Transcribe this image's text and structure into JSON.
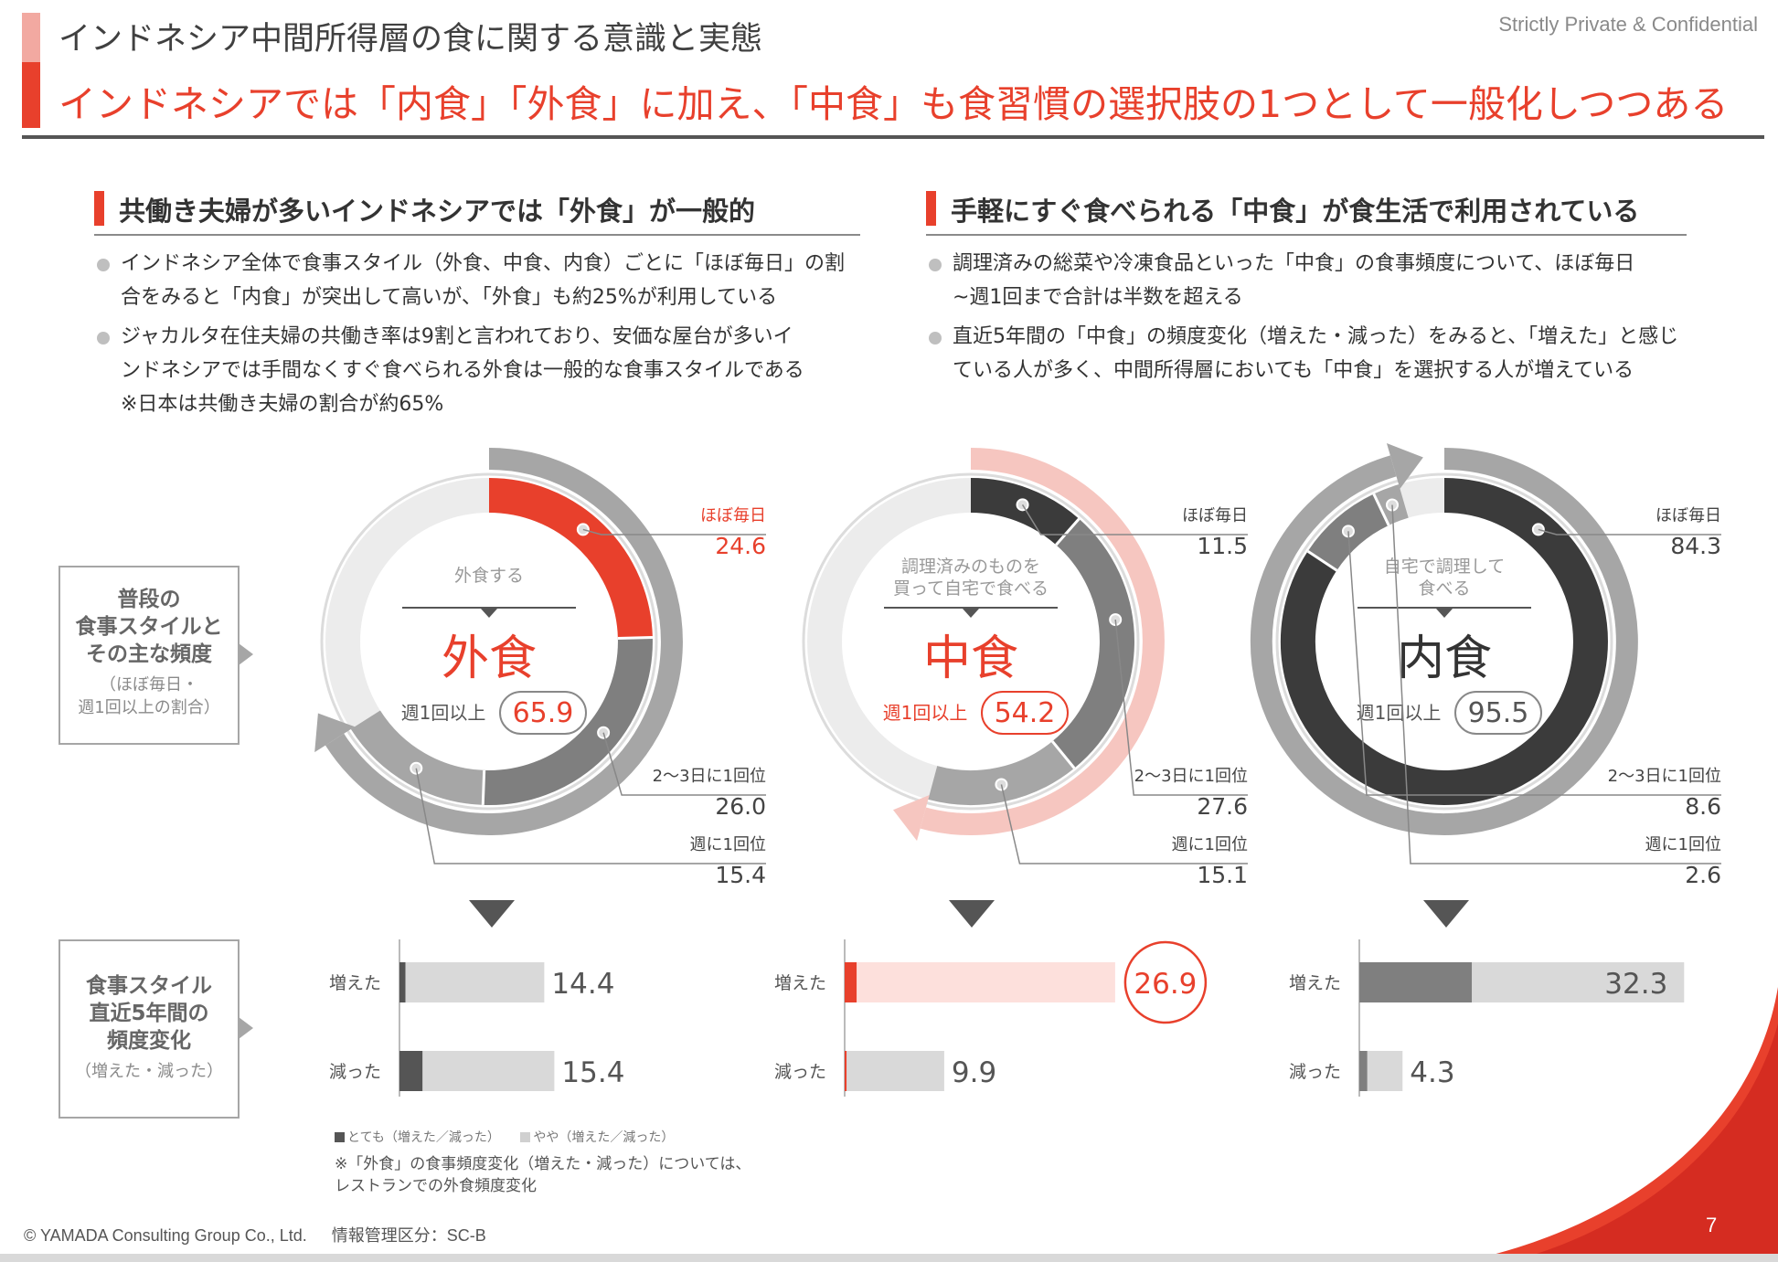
{
  "header": {
    "title": "インドネシア中間所得層の食に関する意識と実態",
    "confidential": "Strictly Private & Confidential",
    "headline": "インドネシアでは「内食」「外食」に加え、「中食」も食習慣の選択肢の1つとして一般化しつつある"
  },
  "left_section": {
    "title": "共働き夫婦が多いインドネシアでは「外食」が一般的",
    "bullets": [
      [
        "インドネシア全体で食事スタイル（外食、中食、内食）ごとに「ほぼ毎日」の割",
        "合をみると「内食」が突出して高いが、「外食」も約25%が利用している"
      ],
      [
        "ジャカルタ在住夫婦の共働き率は9割と言われており、安価な屋台が多いイ",
        "ンドネシアでは手間なくすぐ食べられる外食は一般的な食事スタイルである"
      ]
    ],
    "note": "※日本は共働き夫婦の割合が約65%"
  },
  "right_section": {
    "title": "手軽にすぐ食べられる「中食」が食生活で利用されている",
    "bullets": [
      [
        "調理済みの総菜や冷凍食品といった「中食」の食事頻度について、ほぼ毎日",
        "~週1回まで合計は半数を超える"
      ],
      [
        "直近5年間の「中食」の頻度変化（増えた・減った）をみると、「増えた」と感じ",
        "ている人が多く、中間所得層においても「中食」を選択する人が増えている"
      ]
    ]
  },
  "side_labels": {
    "frequency": {
      "main": [
        "普段の",
        "食事スタイルと",
        "その主な頻度"
      ],
      "sub": [
        "（ほぼ毎日・",
        "週1回以上の割合）"
      ]
    },
    "change": {
      "main": [
        "食事スタイル",
        "直近5年間の",
        "頻度変化"
      ],
      "sub": [
        "（増えた・減った）"
      ]
    }
  },
  "colors": {
    "accent": "#e8402c",
    "accent_light": "#f6c6c0",
    "dark": "#3b3b3b",
    "mid": "#7f7f7f",
    "light": "#a6a6a6",
    "pale": "#d9d9d9"
  },
  "chart_data": [
    {
      "type": "pie",
      "style": "外食",
      "caption": "外食する",
      "center_label": "外食",
      "weekly_label": "週1回以上",
      "weekly_total": "65.9",
      "segments": [
        {
          "label": "ほぼ毎日",
          "value": 24.6
        },
        {
          "label": "2〜3日に1回位",
          "value": 26.0
        },
        {
          "label": "週に1回位",
          "value": 15.4
        }
      ]
    },
    {
      "type": "pie",
      "style": "中食",
      "caption": "調理済みのものを 買って自宅で食べる",
      "center_label": "中食",
      "weekly_label": "週1回以上",
      "weekly_total": "54.2",
      "segments": [
        {
          "label": "ほぼ毎日",
          "value": 11.5
        },
        {
          "label": "2〜3日に1回位",
          "value": 27.6
        },
        {
          "label": "週に1回位",
          "value": 15.1
        }
      ]
    },
    {
      "type": "pie",
      "style": "内食",
      "caption": "自宅で調理して 食べる",
      "center_label": "内食",
      "weekly_label": "週1回以上",
      "weekly_total": "95.5",
      "segments": [
        {
          "label": "ほぼ毎日",
          "value": 84.3
        },
        {
          "label": "2〜3日に1回位",
          "value": 8.6
        },
        {
          "label": "週に1回位",
          "value": 2.6
        }
      ]
    },
    {
      "type": "bar",
      "orientation": "horizontal",
      "stacked": true,
      "categories": [
        "増えた",
        "減った"
      ],
      "groups": [
        {
          "style": "外食",
          "totals": [
            14.4,
            15.4
          ],
          "very": [
            0.6,
            2.3
          ],
          "somewhat": [
            13.8,
            13.1
          ]
        },
        {
          "style": "中食",
          "totals": [
            26.9,
            9.9
          ],
          "very": [
            1.2,
            0.2
          ],
          "somewhat": [
            25.7,
            9.7
          ]
        },
        {
          "style": "内食",
          "totals": [
            32.3,
            4.3
          ],
          "very": [
            11.2,
            0.8
          ],
          "somewhat": [
            21.1,
            3.5
          ]
        }
      ],
      "xlim": [
        0,
        40
      ],
      "legend": [
        "とても（増えた／減った）",
        "やや（増えた／減った）"
      ]
    }
  ],
  "bar_note": [
    "※「外食」の食事頻度変化（増えた・減った）については、",
    "レストランでの外食頻度変化"
  ],
  "footer": {
    "copyright": "© YAMADA Consulting Group Co., Ltd.",
    "classification": "情報管理区分：SC-B",
    "page": "7"
  }
}
